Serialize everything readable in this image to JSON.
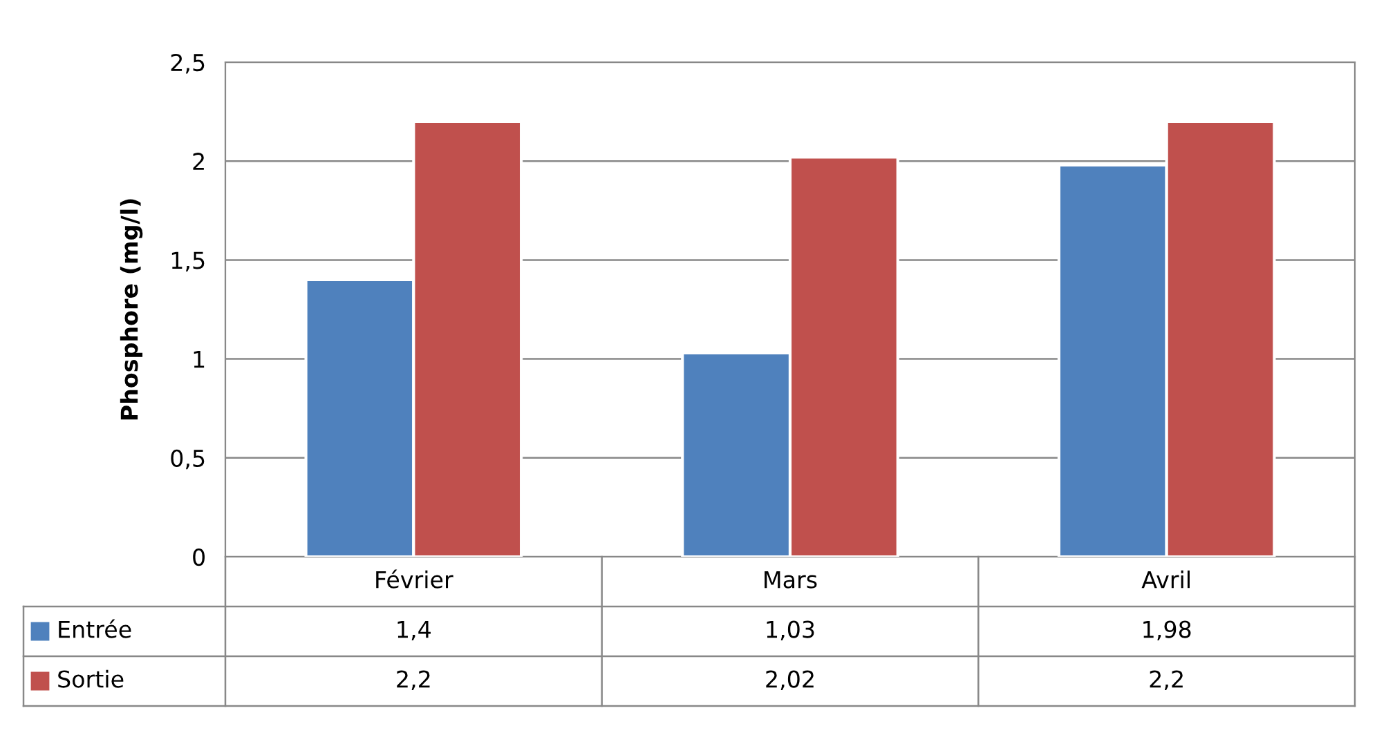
{
  "chart_data": {
    "type": "bar",
    "ylabel": "Phosphore (mg/l)",
    "categories": [
      "Février",
      "Mars",
      "Avril"
    ],
    "series": [
      {
        "name": "Entrée",
        "color": "#4f81bd",
        "values": [
          1.4,
          1.03,
          1.98
        ],
        "value_labels": [
          "1,4",
          "1,03",
          "1,98"
        ]
      },
      {
        "name": "Sortie",
        "color": "#c0504d",
        "values": [
          2.2,
          2.02,
          2.2
        ],
        "value_labels": [
          "2,2",
          "2,02",
          "2,2"
        ]
      }
    ],
    "ylim": [
      0,
      2.5
    ],
    "yticks": [
      0,
      {
        "value": 0.5,
        "label": "0,5"
      },
      1,
      {
        "value": 1.5,
        "label": "1,5"
      },
      2,
      {
        "value": 2.5,
        "label": "2,5"
      }
    ],
    "grid": "y",
    "legend": "bottom"
  }
}
